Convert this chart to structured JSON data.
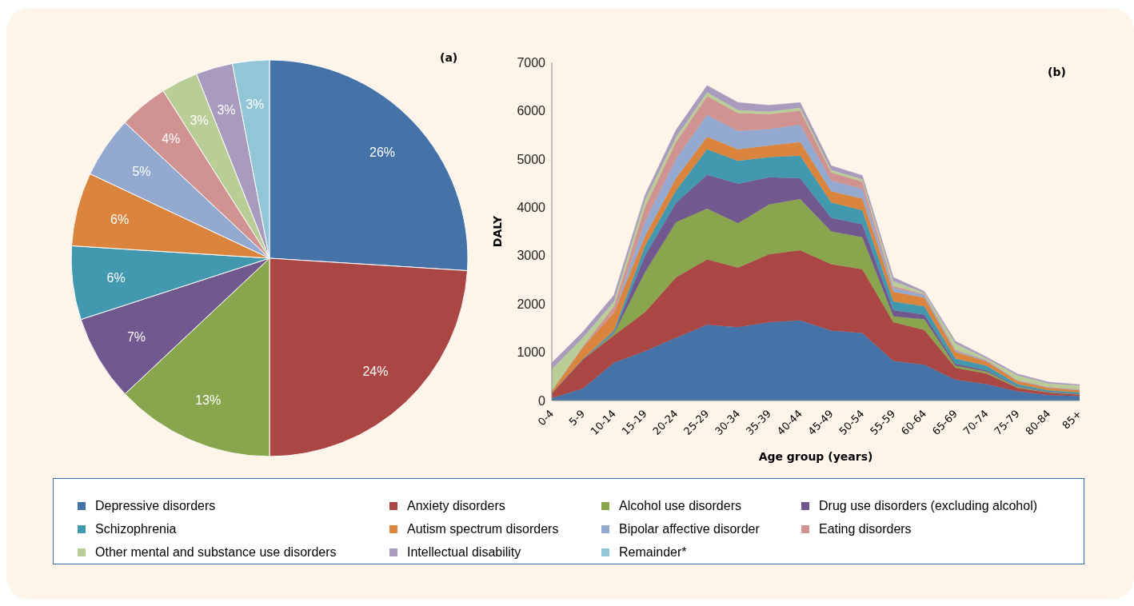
{
  "chart_data": [
    {
      "type": "pie",
      "title": "(a)",
      "categories": [
        "Depressive disorders",
        "Anxiety disorders",
        "Alcohol use disorders",
        "Drug use disorders (excluding alcohol)",
        "Schizophrenia",
        "Autism spectrum disorders",
        "Bipolar affective disorder",
        "Eating disorders",
        "Other mental and substance use disorders",
        "Intellectual disability",
        "Remainder*"
      ],
      "values": [
        26,
        24,
        13,
        7,
        6,
        6,
        5,
        4,
        3,
        3,
        3
      ],
      "value_labels": [
        "26%",
        "24%",
        "13%",
        "7%",
        "6%",
        "6%",
        "5%",
        "4%",
        "3%",
        "3%",
        "3%"
      ],
      "colors": [
        "#4572a7",
        "#aa4643",
        "#89a54e",
        "#71588f",
        "#4198af",
        "#db843d",
        "#93a9cf",
        "#d19392",
        "#b9cd96",
        "#a99bbd",
        "#92c5d6"
      ],
      "legend": "bottom"
    },
    {
      "type": "area",
      "title": "(b)",
      "xlabel": "Age group (years)",
      "ylabel": "DALY",
      "stacked": true,
      "grid": false,
      "categories": [
        "0-4",
        "5-9",
        "10-14",
        "15-19",
        "20-24",
        "25-29",
        "30-34",
        "35-39",
        "40-44",
        "45-49",
        "50-54",
        "55-59",
        "60-64",
        "65-69",
        "70-74",
        "75-79",
        "80-84",
        "85+"
      ],
      "ylim": [
        0,
        7000
      ],
      "yticks": [
        0,
        1000,
        2000,
        3000,
        4000,
        5000,
        6000,
        7000
      ],
      "series": [
        {
          "color": "#4572a7",
          "values": [
            50,
            250,
            780,
            1020,
            1300,
            1570,
            1520,
            1620,
            1660,
            1450,
            1400,
            820,
            740,
            430,
            340,
            190,
            110,
            90
          ]
        },
        {
          "color": "#aa4643",
          "values": [
            100,
            600,
            570,
            810,
            1250,
            1350,
            1230,
            1410,
            1450,
            1370,
            1320,
            800,
            720,
            250,
            220,
            70,
            50,
            30
          ]
        },
        {
          "color": "#89a54e",
          "values": [
            0,
            0,
            30,
            820,
            1140,
            1050,
            920,
            1030,
            1060,
            680,
            660,
            120,
            220,
            40,
            40,
            20,
            10,
            10
          ]
        },
        {
          "color": "#71588f",
          "values": [
            0,
            0,
            20,
            350,
            400,
            700,
            820,
            560,
            430,
            280,
            270,
            130,
            100,
            40,
            30,
            10,
            10,
            10
          ]
        },
        {
          "color": "#4198af",
          "values": [
            0,
            10,
            50,
            200,
            260,
            530,
            470,
            420,
            470,
            320,
            290,
            180,
            170,
            110,
            90,
            50,
            30,
            30
          ]
        },
        {
          "color": "#db843d",
          "values": [
            50,
            240,
            370,
            200,
            250,
            260,
            240,
            240,
            280,
            230,
            240,
            200,
            180,
            140,
            90,
            60,
            50,
            40
          ]
        },
        {
          "color": "#93a9cf",
          "values": [
            0,
            0,
            10,
            300,
            400,
            450,
            380,
            340,
            360,
            220,
            200,
            80,
            60,
            30,
            20,
            10,
            10,
            10
          ]
        },
        {
          "color": "#d19392",
          "values": [
            0,
            20,
            120,
            300,
            350,
            390,
            370,
            310,
            290,
            170,
            150,
            40,
            10,
            10,
            10,
            10,
            10,
            10
          ]
        },
        {
          "color": "#b9cd96",
          "values": [
            450,
            180,
            100,
            150,
            100,
            80,
            60,
            50,
            60,
            50,
            50,
            100,
            30,
            130,
            30,
            100,
            70,
            80
          ]
        },
        {
          "color": "#a99bbd",
          "values": [
            130,
            120,
            130,
            100,
            150,
            140,
            160,
            130,
            110,
            90,
            80,
            80,
            30,
            50,
            30,
            30,
            30,
            20
          ]
        }
      ]
    }
  ]
}
